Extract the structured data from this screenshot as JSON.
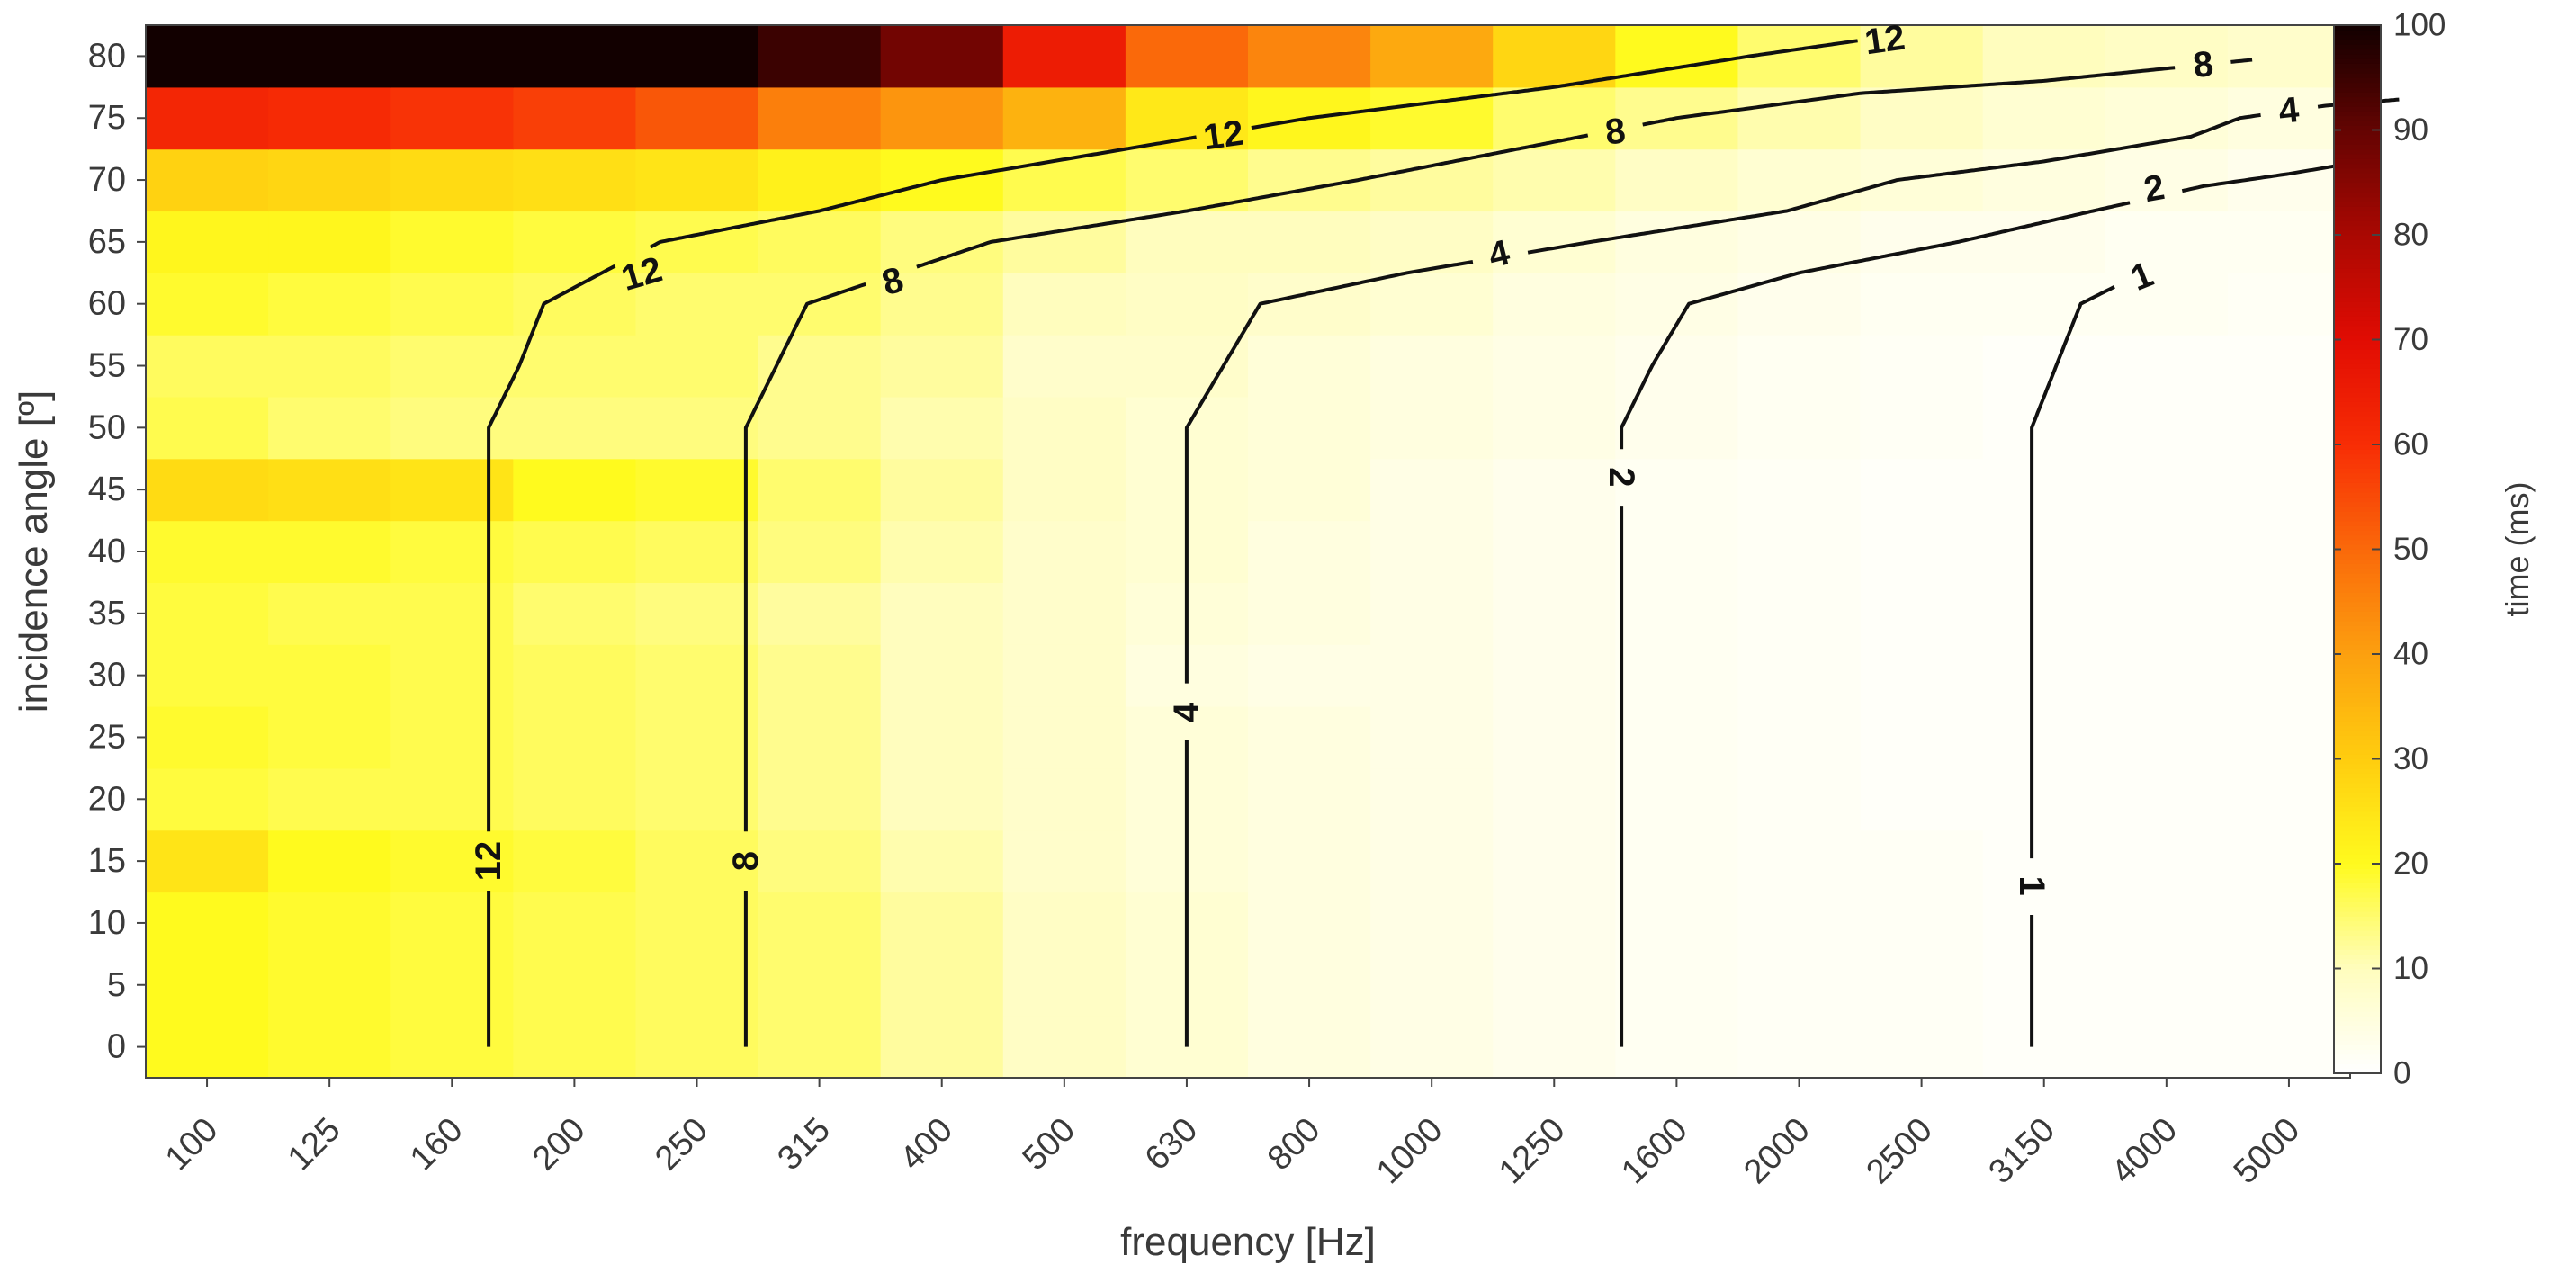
{
  "chart_data": {
    "type": "heatmap",
    "title": "",
    "xlabel": "frequency [Hz]",
    "ylabel": "incidence angle [º]",
    "x_categories": [
      "100",
      "125",
      "160",
      "200",
      "250",
      "315",
      "400",
      "500",
      "630",
      "800",
      "1000",
      "1250",
      "1600",
      "2000",
      "2500",
      "3150",
      "4000",
      "5000"
    ],
    "y_values": [
      0,
      5,
      10,
      15,
      20,
      25,
      30,
      35,
      40,
      45,
      50,
      55,
      60,
      65,
      70,
      75,
      80
    ],
    "y_ticks": [
      "0",
      "5",
      "10",
      "15",
      "20",
      "25",
      "30",
      "35",
      "40",
      "45",
      "50",
      "55",
      "60",
      "65",
      "70",
      "75",
      "80"
    ],
    "z_unit": "time (ms)",
    "z": [
      [
        20,
        19,
        18,
        17,
        16,
        15,
        12,
        9,
        7,
        5,
        4,
        3,
        2,
        1.5,
        1.5,
        1,
        1,
        1
      ],
      [
        20,
        19,
        18,
        17,
        16,
        15,
        12,
        9,
        7,
        5,
        4,
        3,
        2,
        1.5,
        1.5,
        1,
        1,
        1
      ],
      [
        20,
        19,
        18,
        17,
        16,
        15,
        12,
        9,
        7,
        5,
        4,
        3,
        2,
        1.5,
        1.5,
        1,
        1,
        1
      ],
      [
        25,
        20,
        19,
        18,
        16,
        14,
        11,
        8,
        6,
        5,
        4,
        3,
        2,
        1.5,
        1.5,
        1,
        1,
        1
      ],
      [
        18,
        17,
        17,
        16,
        15,
        13,
        10,
        8,
        6,
        5,
        4,
        3,
        2,
        1.5,
        1,
        1,
        1,
        1
      ],
      [
        19,
        18,
        17,
        16,
        15,
        13,
        10,
        8,
        6,
        5,
        4,
        3,
        2,
        1.5,
        1,
        1,
        1,
        1
      ],
      [
        18,
        18,
        17,
        16,
        15,
        13,
        10,
        8,
        5,
        4,
        4,
        3,
        2,
        1.5,
        1,
        1,
        1,
        1
      ],
      [
        18,
        17,
        17,
        15,
        14,
        12,
        10,
        8,
        6,
        5,
        4,
        3,
        2,
        1.5,
        1,
        1,
        1,
        1
      ],
      [
        19,
        19,
        18,
        17,
        16,
        14,
        11,
        8,
        7,
        5,
        4,
        3,
        2,
        1.5,
        1,
        1,
        1,
        1
      ],
      [
        27,
        26,
        25,
        20,
        19,
        15,
        12,
        9,
        7,
        6,
        4,
        3,
        2,
        1.5,
        1,
        1,
        1,
        1
      ],
      [
        17,
        15,
        14,
        14,
        14,
        13,
        11,
        9,
        7,
        6,
        5,
        4,
        3,
        2,
        1.5,
        1,
        1,
        1
      ],
      [
        16,
        16,
        15,
        15,
        15,
        13,
        12,
        8,
        8,
        6,
        5,
        4,
        3,
        2,
        1.5,
        1,
        1,
        1
      ],
      [
        19,
        18,
        17,
        16,
        15,
        15,
        13,
        10,
        9,
        8,
        7,
        5,
        4,
        3,
        2,
        2,
        2,
        1.5
      ],
      [
        21,
        21,
        19,
        18,
        17,
        16,
        14,
        12,
        10,
        10,
        9,
        7,
        5,
        4,
        3,
        3,
        2,
        2
      ],
      [
        29,
        28,
        27,
        26,
        25,
        22,
        20,
        17,
        15,
        13,
        12,
        11,
        9,
        7,
        6,
        5,
        4,
        3
      ],
      [
        62,
        61,
        59,
        57,
        53,
        46,
        42,
        36,
        24,
        21,
        19,
        15,
        13,
        11,
        9,
        7,
        6,
        5
      ],
      [
        100,
        100,
        100,
        100,
        100,
        95,
        88,
        65,
        50,
        45,
        38,
        28,
        20,
        15,
        12,
        10,
        9,
        8
      ]
    ],
    "colorbar": {
      "min": 0,
      "max": 100,
      "ticks": [
        "0",
        "10",
        "20",
        "30",
        "40",
        "50",
        "60",
        "70",
        "80",
        "90",
        "100"
      ],
      "label": "time (ms)",
      "colormap": "hot-reversed"
    },
    "contours": [
      {
        "level": "12",
        "points": [
          [
            3.3,
            0
          ],
          [
            3.3,
            50
          ],
          [
            3.55,
            55
          ],
          [
            3.75,
            60
          ],
          [
            4.7,
            65
          ],
          [
            6.0,
            67.5
          ],
          [
            7.0,
            70
          ],
          [
            8.5,
            72.5
          ],
          [
            10.0,
            75
          ],
          [
            12.0,
            77.5
          ],
          [
            13.6,
            80
          ],
          [
            14.8,
            81.7
          ]
        ],
        "labels": [
          {
            "x": 3.3,
            "y": 15,
            "angle": -90
          },
          {
            "x": 4.55,
            "y": 62.4,
            "angle": -16
          },
          {
            "x": 9.3,
            "y": 73.6,
            "angle": -8
          },
          {
            "x": 14.7,
            "y": 81.3,
            "angle": -8
          }
        ]
      },
      {
        "level": "8",
        "points": [
          [
            5.4,
            0
          ],
          [
            5.4,
            50
          ],
          [
            5.65,
            55
          ],
          [
            5.9,
            60
          ],
          [
            7.4,
            65
          ],
          [
            9.0,
            67.5
          ],
          [
            10.4,
            70
          ],
          [
            11.7,
            72.5
          ],
          [
            13.0,
            75
          ],
          [
            14.5,
            77
          ],
          [
            16.0,
            78
          ],
          [
            17.7,
            79.7
          ]
        ],
        "labels": [
          {
            "x": 5.4,
            "y": 15,
            "angle": -90
          },
          {
            "x": 6.6,
            "y": 61.8,
            "angle": -16
          },
          {
            "x": 12.5,
            "y": 73.9,
            "angle": -6
          },
          {
            "x": 17.3,
            "y": 79.3,
            "angle": -6
          }
        ]
      },
      {
        "level": "4",
        "points": [
          [
            9.0,
            0
          ],
          [
            9.0,
            50
          ],
          [
            9.3,
            55
          ],
          [
            9.6,
            60
          ],
          [
            10.8,
            62.5
          ],
          [
            12.3,
            65
          ],
          [
            13.9,
            67.5
          ],
          [
            14.8,
            70
          ],
          [
            16.0,
            71.5
          ],
          [
            17.2,
            73.5
          ],
          [
            17.6,
            75
          ],
          [
            18.3,
            76
          ],
          [
            18.9,
            76.5
          ]
        ],
        "labels": [
          {
            "x": 9.0,
            "y": 27,
            "angle": -90
          },
          {
            "x": 11.55,
            "y": 64.0,
            "angle": -14
          },
          {
            "x": 18.0,
            "y": 75.6,
            "angle": -6
          }
        ]
      },
      {
        "level": "2",
        "points": [
          [
            12.55,
            0
          ],
          [
            12.55,
            50
          ],
          [
            12.8,
            55
          ],
          [
            13.1,
            60
          ],
          [
            14.0,
            62.5
          ],
          [
            15.3,
            65
          ],
          [
            16.4,
            67.5
          ],
          [
            17.3,
            69.5
          ],
          [
            18.0,
            70.5
          ],
          [
            18.6,
            71.5
          ]
        ],
        "labels": [
          {
            "x": 12.55,
            "y": 46,
            "angle": 90
          },
          {
            "x": 16.9,
            "y": 69.3,
            "angle": -10
          }
        ]
      },
      {
        "level": "1",
        "points": [
          [
            15.9,
            0
          ],
          [
            15.9,
            50
          ],
          [
            16.1,
            55
          ],
          [
            16.3,
            60
          ],
          [
            16.5,
            61
          ],
          [
            16.8,
            62.5
          ],
          [
            17.0,
            63.5
          ]
        ],
        "labels": [
          {
            "x": 15.9,
            "y": 13,
            "angle": 90
          },
          {
            "x": 16.8,
            "y": 62.2,
            "angle": -22
          }
        ]
      }
    ]
  }
}
